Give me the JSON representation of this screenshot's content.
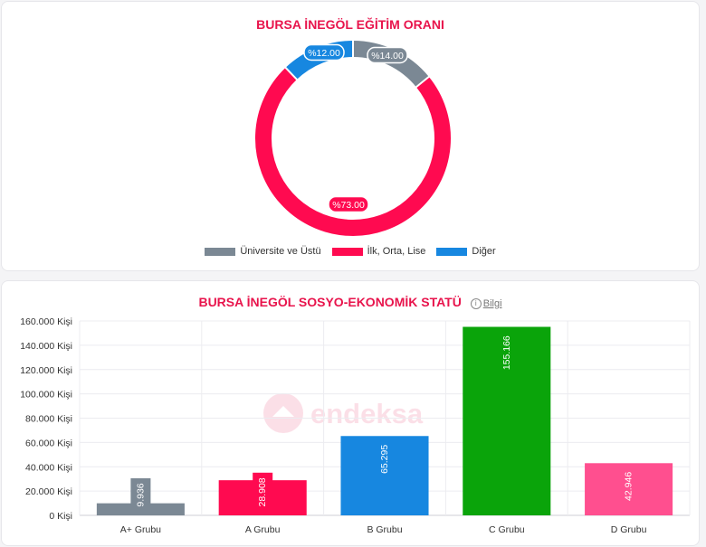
{
  "donut": {
    "title": "BURSA İNEGÖL EĞİTİM ORANI",
    "series": [
      {
        "name": "Üniversite ve Üstü",
        "value": 14.0,
        "label": "%14.00",
        "color": "#7b8894"
      },
      {
        "name": "İlk, Orta, Lise",
        "value": 73.0,
        "label": "%73.00",
        "color": "#ff0a50"
      },
      {
        "name": "Diğer",
        "value": 12.0,
        "label": "%12.00",
        "color": "#1787e0"
      }
    ]
  },
  "bar": {
    "title": "BURSA İNEGÖL SOSYO-EKONOMİK STATÜ",
    "info_label": "Bilgi",
    "info_icon": "info-icon"
  },
  "watermark": "endeksa",
  "chart_data": [
    {
      "type": "pie",
      "title": "BURSA İNEGÖL EĞİTİM ORANI",
      "categories": [
        "Üniversite ve Üstü",
        "İlk, Orta, Lise",
        "Diğer"
      ],
      "values": [
        14.0,
        73.0,
        12.0
      ],
      "labels": [
        "%14.00",
        "%73.00",
        "%12.00"
      ],
      "colors": [
        "#7b8894",
        "#ff0a50",
        "#1787e0"
      ],
      "donut": true,
      "legend": "bottom"
    },
    {
      "type": "bar",
      "title": "BURSA İNEGÖL SOSYO-EKONOMİK STATÜ",
      "categories": [
        "A+ Grubu",
        "A Grubu",
        "B Grubu",
        "C Grubu",
        "D Grubu"
      ],
      "values": [
        9936,
        28908,
        65295,
        155166,
        42946
      ],
      "value_labels": [
        "9.936",
        "28.908",
        "65.295",
        "155.166",
        "42.946"
      ],
      "colors": [
        "#7b8894",
        "#ff0a50",
        "#1787e0",
        "#0aa40a",
        "#ff4f8f"
      ],
      "ylim": [
        0,
        160000
      ],
      "yticks": [
        0,
        20000,
        40000,
        60000,
        80000,
        100000,
        120000,
        140000,
        160000
      ],
      "ytick_labels": [
        "0 Kişi",
        "20.000 Kişi",
        "40.000 Kişi",
        "60.000 Kişi",
        "80.000 Kişi",
        "100.000 Kişi",
        "120.000 Kişi",
        "140.000 Kişi",
        "160.000 Kişi"
      ],
      "grid": true,
      "legend": "none"
    }
  ]
}
